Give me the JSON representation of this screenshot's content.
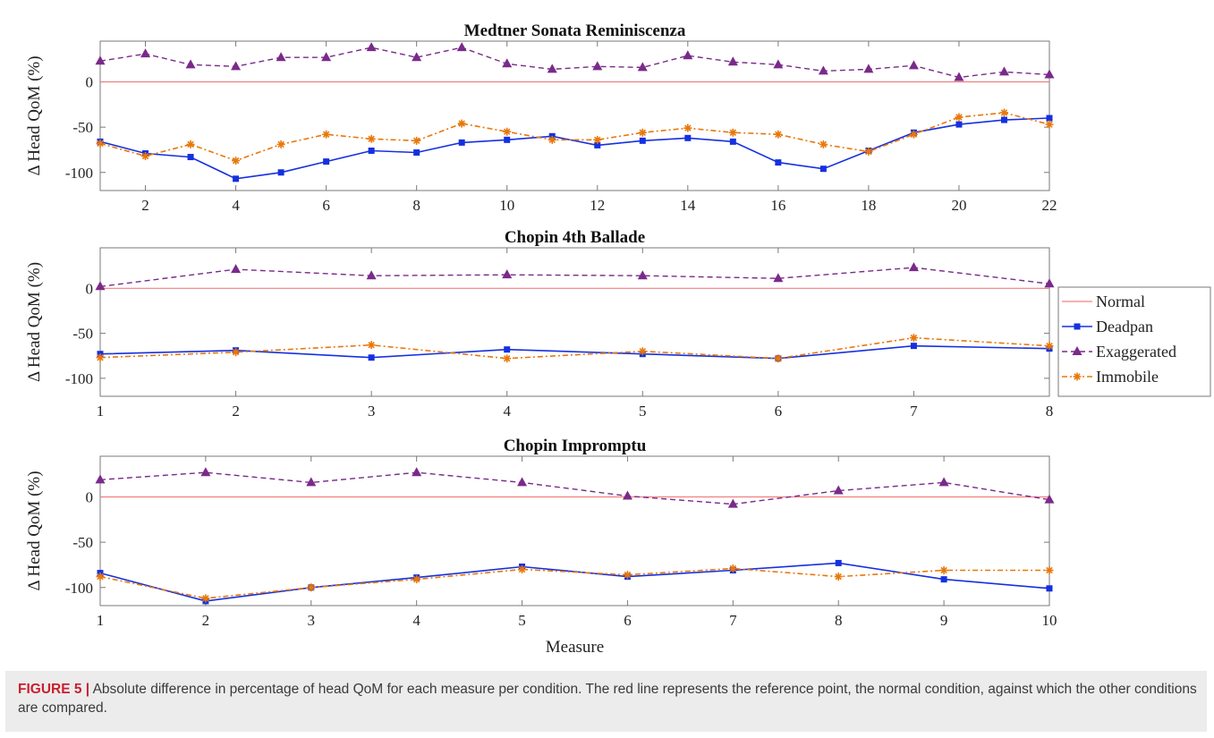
{
  "figure": {
    "caption_label": "FIGURE 5 |",
    "caption_text": " Absolute difference in percentage of head QoM for each measure per condition. The red line represents the reference point, the normal condition, against which the other conditions are compared."
  },
  "colors": {
    "normal": "#f08080",
    "deadpan": "#1530e0",
    "exaggerated": "#7a2a8a",
    "immobile": "#e8780a"
  },
  "legend": {
    "placement": "right of middle panel",
    "entries": [
      "Normal",
      "Deadpan",
      "Exaggerated",
      "Immobile"
    ]
  },
  "chart_data": [
    {
      "type": "line",
      "title": "Medtner Sonata Reminiscenza",
      "xlabel": "",
      "ylabel": "Δ Head QoM (%)",
      "xlim": [
        1,
        22
      ],
      "ylim": [
        -120,
        45
      ],
      "xticks": [
        2,
        4,
        6,
        8,
        10,
        12,
        14,
        16,
        18,
        20,
        22
      ],
      "yticks": [
        -100,
        -50,
        0
      ],
      "x": [
        1,
        2,
        3,
        4,
        5,
        6,
        7,
        8,
        9,
        10,
        11,
        12,
        13,
        14,
        15,
        16,
        17,
        18,
        19,
        20,
        21,
        22
      ],
      "series": [
        {
          "name": "Normal",
          "values": [
            0,
            0,
            0,
            0,
            0,
            0,
            0,
            0,
            0,
            0,
            0,
            0,
            0,
            0,
            0,
            0,
            0,
            0,
            0,
            0,
            0,
            0
          ]
        },
        {
          "name": "Deadpan",
          "values": [
            -66,
            -79,
            -83,
            -107,
            -100,
            -88,
            -76,
            -78,
            -67,
            -64,
            -60,
            -70,
            -65,
            -62,
            -66,
            -89,
            -96,
            -76,
            -56,
            -47,
            -42,
            -40
          ]
        },
        {
          "name": "Exaggerated",
          "values": [
            23,
            31,
            19,
            17,
            27,
            27,
            38,
            27,
            38,
            20,
            14,
            17,
            16,
            29,
            22,
            19,
            12,
            14,
            18,
            5,
            11,
            8
          ]
        },
        {
          "name": "Immobile",
          "values": [
            -68,
            -82,
            -69,
            -87,
            -69,
            -58,
            -63,
            -65,
            -46,
            -55,
            -64,
            -64,
            -56,
            -51,
            -56,
            -58,
            -69,
            -77,
            -58,
            -39,
            -34,
            -47
          ]
        }
      ]
    },
    {
      "type": "line",
      "title": "Chopin 4th Ballade",
      "xlabel": "",
      "ylabel": "Δ Head QoM (%)",
      "xlim": [
        1,
        8
      ],
      "ylim": [
        -120,
        45
      ],
      "xticks": [
        1,
        2,
        3,
        4,
        5,
        6,
        7,
        8
      ],
      "yticks": [
        -100,
        -50,
        0
      ],
      "x": [
        1,
        2,
        3,
        4,
        5,
        6,
        7,
        8
      ],
      "series": [
        {
          "name": "Normal",
          "values": [
            0,
            0,
            0,
            0,
            0,
            0,
            0,
            0
          ]
        },
        {
          "name": "Deadpan",
          "values": [
            -73,
            -69,
            -77,
            -68,
            -73,
            -78,
            -64,
            -67
          ]
        },
        {
          "name": "Exaggerated",
          "values": [
            2,
            21,
            14,
            15,
            14,
            11,
            23,
            5
          ]
        },
        {
          "name": "Immobile",
          "values": [
            -77,
            -71,
            -63,
            -78,
            -70,
            -78,
            -55,
            -64
          ]
        }
      ]
    },
    {
      "type": "line",
      "title": "Chopin Impromptu",
      "xlabel": "Measure",
      "ylabel": "Δ Head QoM (%)",
      "xlim": [
        1,
        10
      ],
      "ylim": [
        -120,
        45
      ],
      "xticks": [
        1,
        2,
        3,
        4,
        5,
        6,
        7,
        8,
        9,
        10
      ],
      "yticks": [
        -100,
        -50,
        0
      ],
      "x": [
        1,
        2,
        3,
        4,
        5,
        6,
        7,
        8,
        9,
        10
      ],
      "series": [
        {
          "name": "Normal",
          "values": [
            0,
            0,
            0,
            0,
            0,
            0,
            0,
            0,
            0,
            0
          ]
        },
        {
          "name": "Deadpan",
          "values": [
            -84,
            -115,
            -100,
            -89,
            -77,
            -88,
            -81,
            -73,
            -91,
            -101
          ]
        },
        {
          "name": "Exaggerated",
          "values": [
            19,
            27,
            16,
            27,
            16,
            1,
            -8,
            7,
            16,
            -3
          ]
        },
        {
          "name": "Immobile",
          "values": [
            -88,
            -112,
            -100,
            -91,
            -80,
            -86,
            -79,
            -88,
            -81,
            -81
          ]
        }
      ]
    }
  ]
}
